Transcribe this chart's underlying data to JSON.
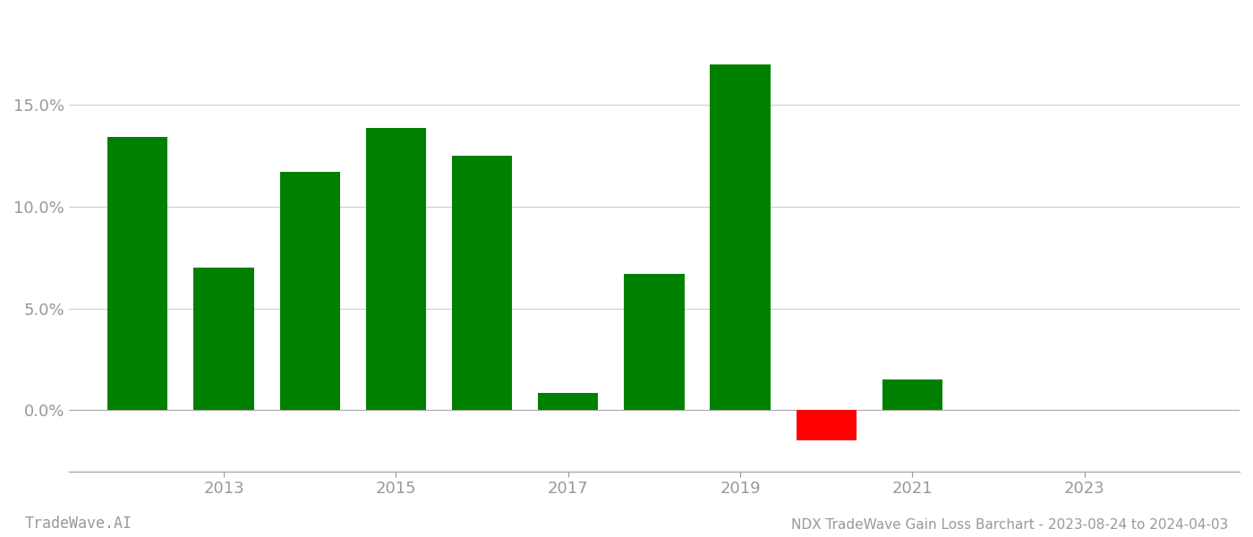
{
  "years": [
    2012,
    2013,
    2014,
    2015,
    2016,
    2017,
    2018,
    2019,
    2020,
    2021,
    2022
  ],
  "values": [
    0.1345,
    0.07,
    0.117,
    0.1385,
    0.125,
    0.0085,
    0.067,
    0.17,
    -0.015,
    0.015,
    0.0
  ],
  "bar_color_positive": "#008000",
  "bar_color_negative": "#ff0000",
  "background_color": "#ffffff",
  "grid_color": "#cccccc",
  "axis_label_color": "#999999",
  "title_text": "NDX TradeWave Gain Loss Barchart - 2023-08-24 to 2024-04-03",
  "watermark_text": "TradeWave.AI",
  "ylim_min": -0.03,
  "ylim_max": 0.195,
  "bar_width": 0.7,
  "xlim_min": 2011.2,
  "xlim_max": 2024.8,
  "xtick_positions": [
    2013,
    2015,
    2017,
    2019,
    2021,
    2023
  ],
  "xtick_labels": [
    "2013",
    "2015",
    "2017",
    "2019",
    "2021",
    "2023"
  ]
}
